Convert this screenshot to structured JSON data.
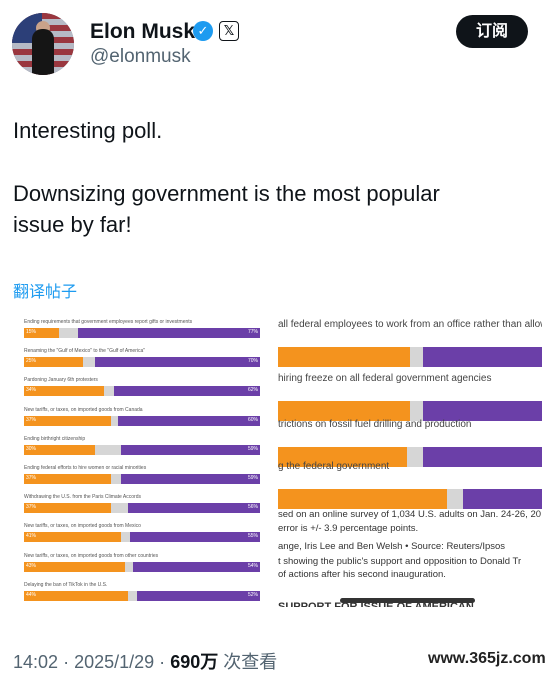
{
  "author": {
    "name": "Elon Musk",
    "handle": "@elonmusk",
    "verified_mark": "✓",
    "x_logo": "𝕏"
  },
  "subscribe_label": "订阅",
  "post_lines": [
    "Interesting poll.",
    "Downsizing government is the most popular",
    "issue by far!"
  ],
  "translate_label": "翻译帖子",
  "colors": {
    "support": "#f4931e",
    "neutral": "#d6d6d6",
    "oppose": "#6b3fa8",
    "link": "#1d9bf0"
  },
  "poll_left": [
    {
      "q": "Ending requirements that government employees report gifts or investments",
      "support": 15,
      "oppose": 77
    },
    {
      "q": "Renaming the \"Gulf of Mexico\" to the \"Gulf of America\"",
      "support": 25,
      "oppose": 70
    },
    {
      "q": "Pardoning January 6th protesters",
      "support": 34,
      "oppose": 62
    },
    {
      "q": "New tariffs, or taxes, on imported goods from Canada",
      "support": 37,
      "oppose": 60
    },
    {
      "q": "Ending birthright citizenship",
      "support": 30,
      "oppose": 59
    },
    {
      "q": "Ending federal efforts to hire women or racial minorities",
      "support": 37,
      "oppose": 59
    },
    {
      "q": "Withdrawing the U.S. from the Paris Climate Accords",
      "support": 37,
      "oppose": 56
    },
    {
      "q": "New tariffs, or taxes, on imported goods from Mexico",
      "support": 41,
      "oppose": 55
    },
    {
      "q": "New tariffs, or taxes, on imported goods from other countries",
      "support": 43,
      "oppose": 54
    },
    {
      "q": "Delaying the ban of TikTok in the U.S.",
      "support": 44,
      "oppose": 52
    }
  ],
  "poll_right": [
    {
      "label": "all federal employees to work from an office rather than allowin",
      "support": 50,
      "neutral": 5
    },
    {
      "label": "hiring freeze on all federal government agencies",
      "support": 50,
      "neutral": 5
    },
    {
      "label": "trictions on fossil fuel drilling and production",
      "support": 49,
      "neutral": 6
    },
    {
      "label": "g the federal government",
      "support": 64,
      "neutral": 6
    }
  ],
  "right_footer": [
    "sed on an online survey of 1,034 U.S. adults on Jan. 24-26, 20",
    "error is +/- 3.9 percentage points.",
    "ange, Iris Lee and Ben Welsh • Source: Reuters/Ipsos",
    "t showing the public's support and opposition to Donald Tr",
    "of actions after his second inauguration.",
    "SUPPORT FOR ISSUE OF AMERICAN"
  ],
  "meta": {
    "time": "14:02",
    "date": "2025/1/29",
    "views": "690万",
    "views_suffix": "次查看",
    "sep": "·"
  },
  "watermark": "www.365jz.com"
}
